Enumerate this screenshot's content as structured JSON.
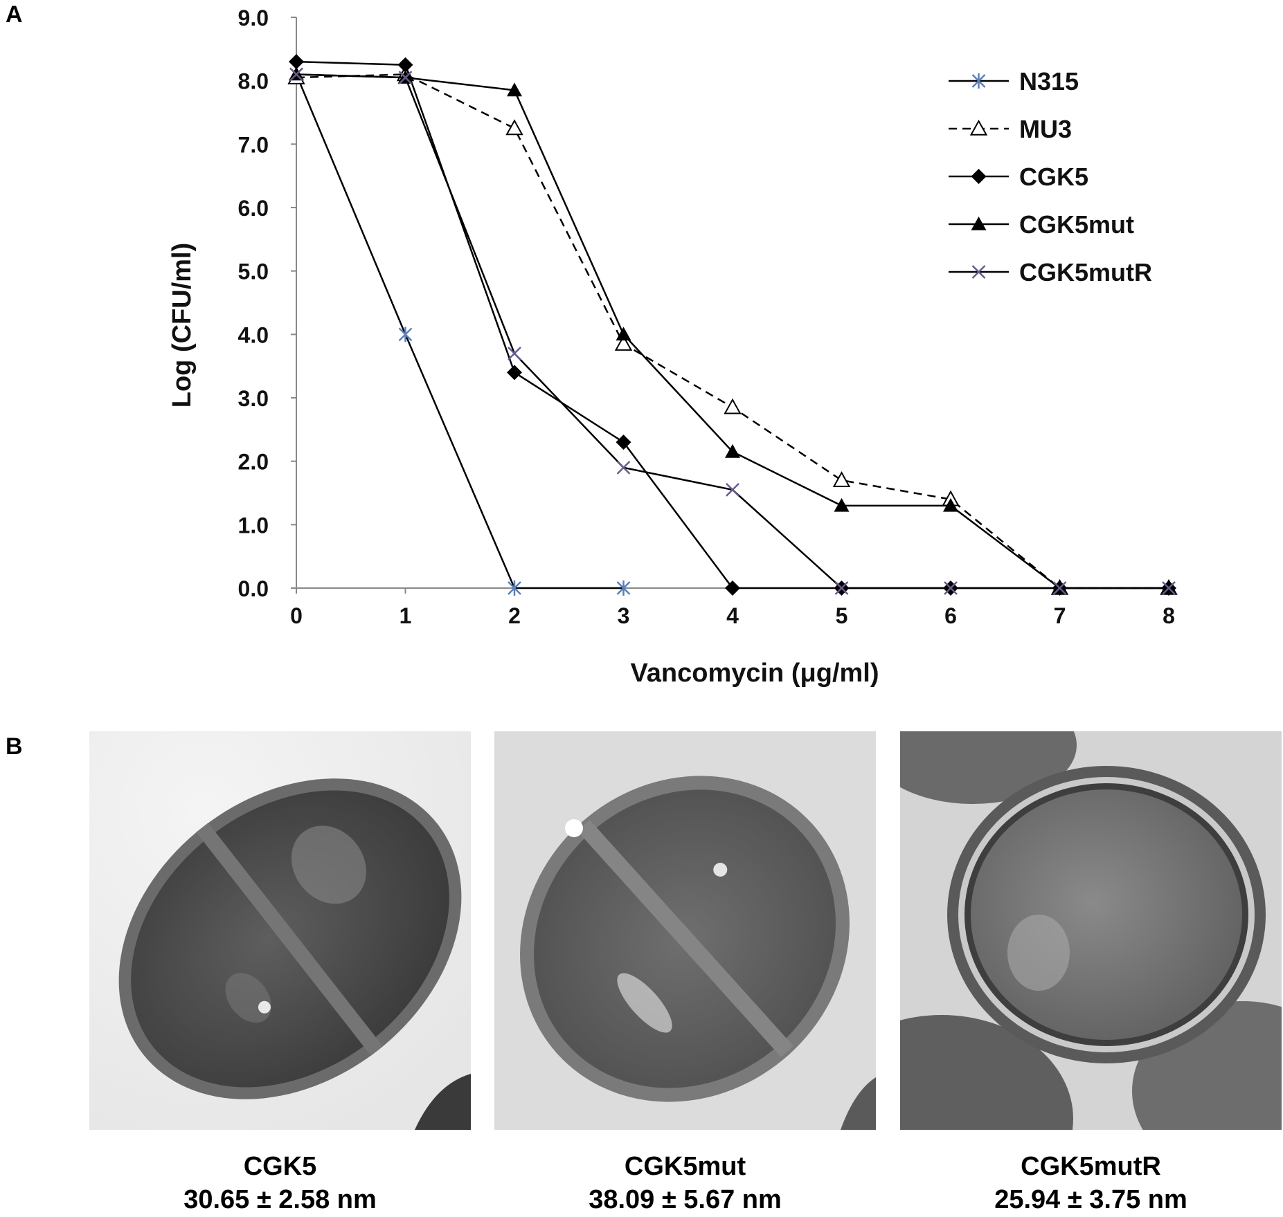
{
  "panels": {
    "a": "A",
    "b": "B"
  },
  "chart_data": {
    "type": "line",
    "xlabel": "Vancomycin (μg/ml)",
    "ylabel": "Log (CFU/ml)",
    "x": [
      0,
      1,
      2,
      3,
      4,
      5,
      6,
      7,
      8
    ],
    "xlim": [
      0,
      8
    ],
    "ylim": [
      0,
      9
    ],
    "x_ticks": [
      "0",
      "1",
      "2",
      "3",
      "4",
      "5",
      "6",
      "7",
      "8"
    ],
    "y_ticks": [
      "0.0",
      "1.0",
      "2.0",
      "3.0",
      "4.0",
      "5.0",
      "6.0",
      "7.0",
      "8.0",
      "9.0"
    ],
    "grid": false,
    "legend_position": "top-right",
    "series": [
      {
        "name": "N315",
        "marker": "asterisk",
        "dash": "solid",
        "color": "#000000",
        "marker_color": "#5b7fb8",
        "values": [
          8.1,
          4.0,
          0,
          0,
          null,
          null,
          null,
          null,
          null
        ]
      },
      {
        "name": "MU3",
        "marker": "open-triangle",
        "dash": "dashed",
        "color": "#000000",
        "marker_color": "#000000",
        "values": [
          8.05,
          8.1,
          7.25,
          3.85,
          2.85,
          1.7,
          1.4,
          0,
          0
        ]
      },
      {
        "name": "CGK5",
        "marker": "diamond",
        "dash": "solid",
        "color": "#000000",
        "marker_color": "#000000",
        "values": [
          8.3,
          8.25,
          3.4,
          2.3,
          0,
          0,
          0,
          0,
          0
        ]
      },
      {
        "name": "CGK5mut",
        "marker": "filled-triangle",
        "dash": "solid",
        "color": "#000000",
        "marker_color": "#000000",
        "values": [
          8.1,
          8.05,
          7.85,
          4.0,
          2.15,
          1.3,
          1.3,
          0,
          0
        ]
      },
      {
        "name": "CGK5mutR",
        "marker": "x",
        "dash": "solid",
        "color": "#000000",
        "marker_color": "#6a5a8e",
        "values": [
          8.1,
          8.05,
          3.7,
          1.9,
          1.55,
          0,
          0,
          0,
          0
        ]
      }
    ]
  },
  "images": [
    {
      "label": "CGK5",
      "measure": "30.65 ± 2.58 nm"
    },
    {
      "label": "CGK5mut",
      "measure": "38.09 ± 5.67 nm"
    },
    {
      "label": "CGK5mutR",
      "measure": "25.94 ± 3.75 nm"
    }
  ]
}
